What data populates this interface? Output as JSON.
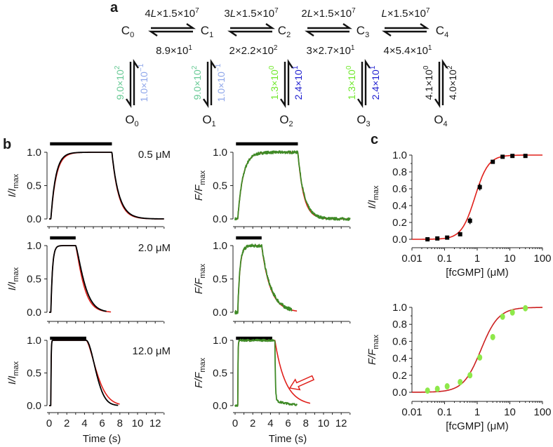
{
  "panel_a": {
    "label": "a",
    "closed_states": [
      {
        "letter": "C",
        "sub": "0"
      },
      {
        "letter": "C",
        "sub": "1"
      },
      {
        "letter": "C",
        "sub": "2"
      },
      {
        "letter": "C",
        "sub": "3"
      },
      {
        "letter": "C",
        "sub": "4"
      }
    ],
    "open_states": [
      {
        "letter": "O",
        "sub": "0"
      },
      {
        "letter": "O",
        "sub": "1"
      },
      {
        "letter": "O",
        "sub": "2"
      },
      {
        "letter": "O",
        "sub": "3"
      },
      {
        "letter": "O",
        "sub": "4"
      }
    ],
    "forward_rates": [
      {
        "coef": "4",
        "ligand": "L",
        "value": "×1.5×10",
        "exp": "7"
      },
      {
        "coef": "3",
        "ligand": "L",
        "value": "×1.5×10",
        "exp": "7"
      },
      {
        "coef": "2",
        "ligand": "L",
        "value": "×1.5×10",
        "exp": "7"
      },
      {
        "coef": "",
        "ligand": "L",
        "value": "×1.5×10",
        "exp": "7"
      }
    ],
    "backward_rates": [
      {
        "value": "8.9×10",
        "exp": "1"
      },
      {
        "value": "2×2.2×10",
        "exp": "2"
      },
      {
        "value": "3×2.7×10",
        "exp": "1"
      },
      {
        "value": "4×5.4×10",
        "exp": "1"
      }
    ],
    "opening_rates": [
      {
        "value": "9.0×10",
        "exp": "2",
        "color": "#66c994"
      },
      {
        "value": "9.0×10",
        "exp": "2",
        "color": "#66c994"
      },
      {
        "value": "1.3×10",
        "exp": "0",
        "color": "#6fe82a"
      },
      {
        "value": "1.3×10",
        "exp": "0",
        "color": "#6fe82a"
      },
      {
        "value": "4.1×10",
        "exp": "0",
        "color": "#1a1a1a"
      }
    ],
    "closing_rates": [
      {
        "value": "1.0×10",
        "exp": "−1",
        "color": "#8ea6ea"
      },
      {
        "value": "1.0×10",
        "exp": "−1",
        "color": "#8ea6ea"
      },
      {
        "value": "2.4×10",
        "exp": "1",
        "color": "#1c1ccf"
      },
      {
        "value": "2.4×10",
        "exp": "1",
        "color": "#1c1ccf"
      },
      {
        "value": "4.0×10",
        "exp": "2",
        "color": "#1a1a1a"
      }
    ]
  },
  "panel_b": {
    "label": "b"
  },
  "panel_c": {
    "label": "c"
  },
  "chart_data": [
    {
      "id": "panel-b",
      "type": "line",
      "xlabel": "Time (s)",
      "xlim": [
        0,
        13
      ],
      "x_ticks": [
        "0",
        "2",
        "4",
        "6",
        "8",
        "10",
        "12"
      ],
      "ylim": [
        0,
        1
      ],
      "y_ticks": [
        "0.0",
        "0.5",
        "1.0"
      ],
      "colors": {
        "current": "#000000",
        "fluorescence": "#3e8a26",
        "fit": "#e0201b",
        "stimulus": "#000000"
      },
      "rows": [
        {
          "concentration_label": "0.5 μM",
          "current": {
            "ylabel": {
              "main": "I/I",
              "sub": "max"
            },
            "stimulus": [
              0.1,
              7.1
            ],
            "traces": [
              {
                "name": "fit",
                "t_on": 0.2,
                "tau_on": 0.6,
                "t_off": 7.1,
                "tau_off": 0.75,
                "decay_power": 1,
                "t_end": 13
              },
              {
                "name": "current",
                "t_on": 0.2,
                "tau_on": 0.55,
                "t_off": 7.1,
                "tau_off": 0.8,
                "decay_power": 1,
                "t_end": 13
              }
            ]
          },
          "fluorescence": {
            "ylabel": {
              "main": "F/F",
              "sub": "max"
            },
            "stimulus": [
              0.1,
              7.1
            ],
            "traces": [
              {
                "name": "fit",
                "t_on": 0.3,
                "tau_on": 0.6,
                "t_off": 7.1,
                "tau_off": 0.65,
                "decay_power": 1,
                "t_end": 13
              },
              {
                "name": "fluorescence",
                "t_on": 0.3,
                "tau_on": 0.6,
                "t_off": 7.1,
                "tau_off": 0.7,
                "decay_power": 1,
                "t_end": 13,
                "noise": 0.02
              }
            ]
          }
        },
        {
          "concentration_label": "2.0 μM",
          "current": {
            "ylabel": {
              "main": "I/I",
              "sub": "max"
            },
            "stimulus": [
              0.1,
              3.0
            ],
            "traces": [
              {
                "name": "fit",
                "t_on": 0.2,
                "tau_on": 0.18,
                "t_off": 3.0,
                "tau_off": 1.0,
                "decay_power": 1.2,
                "t_end": 7
              },
              {
                "name": "current",
                "t_on": 0.2,
                "tau_on": 0.18,
                "t_off": 3.0,
                "tau_off": 1.15,
                "decay_power": 1.3,
                "t_end": 6.5
              }
            ]
          },
          "fluorescence": {
            "ylabel": {
              "main": "F/F",
              "sub": "max"
            },
            "stimulus": [
              0.1,
              3.0
            ],
            "traces": [
              {
                "name": "fit",
                "t_on": 0.3,
                "tau_on": 0.25,
                "t_off": 3.0,
                "tau_off": 1.0,
                "decay_power": 1,
                "t_end": 7
              },
              {
                "name": "fluorescence",
                "t_on": 0.3,
                "tau_on": 0.25,
                "t_off": 3.0,
                "tau_off": 1.05,
                "decay_power": 1,
                "t_end": 6.4,
                "noise": 0.025
              }
            ]
          }
        },
        {
          "concentration_label": "12.0 μM",
          "current": {
            "ylabel": {
              "main": "I/I",
              "sub": "max"
            },
            "stimulus": [
              0.1,
              4.2
            ],
            "traces": [
              {
                "name": "fit",
                "t_on": 0.2,
                "tau_on": 0.03,
                "t_off": 4.2,
                "tau_off": 1.55,
                "decay_power": 1.5,
                "t_end": 8
              },
              {
                "name": "current",
                "t_on": 0.2,
                "tau_on": 0.03,
                "t_off": 4.2,
                "tau_off": 1.4,
                "decay_power": 1.8,
                "t_end": 7.8
              }
            ]
          },
          "fluorescence": {
            "ylabel": {
              "main": "F/F",
              "sub": "max"
            },
            "stimulus": [
              0.1,
              4.2
            ],
            "annotation": "arrow",
            "traces": [
              {
                "name": "fit",
                "t_on": 0.3,
                "tau_on": 0.03,
                "t_off": 4.5,
                "tau_off": 1.2,
                "decay_power": 1,
                "t_end": 8.5
              },
              {
                "name": "fluorescence",
                "t_on": 0.3,
                "tau_on": 0.03,
                "t_off": 4.5,
                "tau_off": 0.06,
                "decay_power": 1,
                "tail_amp": 0.08,
                "tail_tau": 1.5,
                "t_end": 7,
                "noise": 0.015
              }
            ]
          }
        }
      ]
    },
    {
      "id": "panel-c-current",
      "type": "scatter",
      "xscale": "log",
      "xlabel": "[fcGMP] (μM)",
      "ylabel": {
        "main": "I/I",
        "sub": "max"
      },
      "xlim": [
        0.01,
        100
      ],
      "x_ticks": [
        "0.01",
        "0.1",
        "1",
        "10",
        "100"
      ],
      "ylim": [
        0,
        1
      ],
      "y_ticks": [
        "0.0",
        "0.2",
        "0.4",
        "0.6",
        "0.8",
        "1.0"
      ],
      "marker_color": "#000000",
      "fit_color": "#e0201b",
      "x": [
        0.03,
        0.06,
        0.12,
        0.3,
        0.6,
        1.2,
        3,
        6,
        12,
        30
      ],
      "y": [
        0.0,
        0.01,
        0.02,
        0.06,
        0.22,
        0.62,
        0.92,
        0.98,
        0.99,
        0.99
      ],
      "err": [
        0.01,
        0.01,
        0.01,
        0.015,
        0.04,
        0.04,
        0.015,
        0.01,
        0.01,
        0.01
      ],
      "fit": {
        "type": "hill",
        "K": 0.85,
        "n": 2.1
      }
    },
    {
      "id": "panel-c-fluorescence",
      "type": "scatter",
      "xscale": "log",
      "xlabel": "[fcGMP] (μM)",
      "ylabel": {
        "main": "F/F",
        "sub": "max"
      },
      "xlim": [
        0.01,
        100
      ],
      "x_ticks": [
        "0.01",
        "0.1",
        "1",
        "10",
        "100"
      ],
      "ylim": [
        0,
        1
      ],
      "y_ticks": [
        "0.0",
        "0.2",
        "0.4",
        "0.6",
        "0.8",
        "1.0"
      ],
      "marker_color": "#8ee84a",
      "fit_color": "#cc1f1f",
      "x": [
        0.03,
        0.06,
        0.12,
        0.3,
        0.6,
        1.2,
        3,
        6,
        12,
        30
      ],
      "y": [
        0.02,
        0.04,
        0.07,
        0.12,
        0.2,
        0.41,
        0.65,
        0.89,
        0.94,
        0.99
      ],
      "err": [
        0.01,
        0.01,
        0.02,
        0.01,
        0.02,
        0.03,
        0.02,
        0.02,
        0.01,
        0.01
      ],
      "fit": {
        "type": "hill",
        "K": 1.3,
        "n": 1.6
      }
    }
  ]
}
